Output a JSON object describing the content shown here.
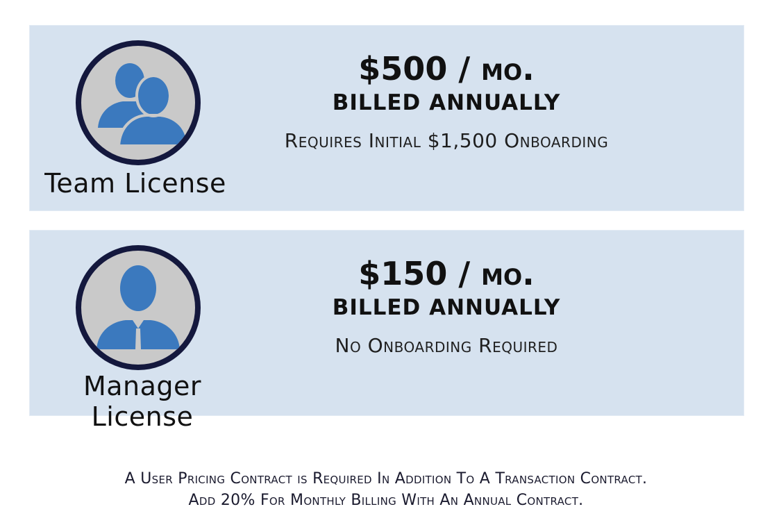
{
  "colors": {
    "card_background": "#d6e2ef",
    "avatar_ring": "#14183d",
    "avatar_fill": "#c9c9c9",
    "person_icon": "#3b79be"
  },
  "plans": {
    "team": {
      "icon": "team-users-icon",
      "label": "Team License",
      "price": "$500",
      "separator": " / ",
      "period": "mo.",
      "billing": "BILLED ANNUALLY",
      "note": "Requires Initial $1,500 Onboarding"
    },
    "manager": {
      "icon": "manager-user-icon",
      "label": "Manager License",
      "price": "$150",
      "separator": " / ",
      "period": "mo.",
      "billing": "BILLED ANNUALLY",
      "note": "No Onboarding Required"
    }
  },
  "footer": {
    "line1": "A User Pricing Contract is Required In Addition To A Transaction Contract.",
    "line2": "Add 20% For Monthly Billing With An Annual Contract."
  }
}
